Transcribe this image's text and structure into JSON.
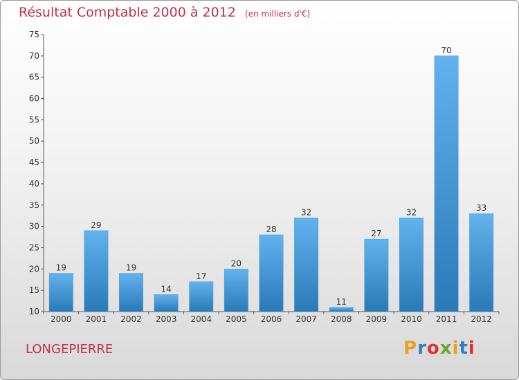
{
  "title": "Résultat Comptable 2000 à 2012",
  "unit": "(en milliers d'€)",
  "town": "LONGEPIERRE",
  "brand": {
    "text": "Proxiti",
    "colors": [
      "#e8a020",
      "#2f7fc0",
      "#e03030",
      "#6aa82a",
      "#e8a020",
      "#2f7fc0",
      "#e03030"
    ]
  },
  "colors": {
    "bar_top": "#62b2ee",
    "bar_bottom": "#2a7ab8",
    "title": "#c0304a"
  },
  "chart_data": {
    "type": "bar",
    "categories": [
      "2000",
      "2001",
      "2002",
      "2003",
      "2004",
      "2005",
      "2006",
      "2007",
      "2008",
      "2009",
      "2010",
      "2011",
      "2012"
    ],
    "values": [
      19,
      29,
      19,
      14,
      17,
      20,
      28,
      32,
      11,
      27,
      32,
      70,
      33
    ],
    "ylim": [
      10,
      75
    ],
    "yticks": [
      10,
      15,
      20,
      25,
      30,
      35,
      40,
      45,
      50,
      55,
      60,
      65,
      70,
      75
    ],
    "grid": false,
    "xlabel": "",
    "ylabel": ""
  }
}
